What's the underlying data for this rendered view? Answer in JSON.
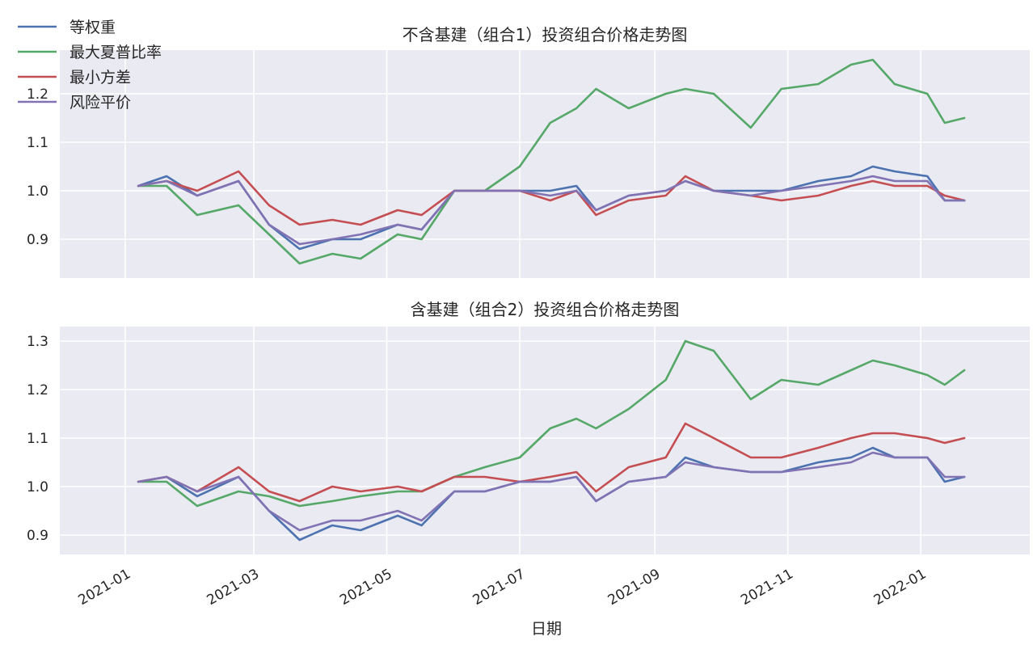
{
  "legend": [
    "等权重",
    "最大夏普比率",
    "最小方差",
    "风险平价"
  ],
  "chart_data": [
    {
      "type": "line",
      "title": "不含基建（组合1）投资组合价格走势图",
      "xlabel": "",
      "ylabel": "",
      "ylim": [
        0.82,
        1.29
      ],
      "yticks": [
        0.9,
        1.0,
        1.1,
        1.2
      ],
      "ytick_labels": [
        "0.9",
        "1.0",
        "1.1",
        "1.2"
      ],
      "xlim": [
        "2020-12-02",
        "2022-02-20"
      ],
      "x_dates": [
        "2021-01-07",
        "2021-01-20",
        "2021-02-03",
        "2021-02-22",
        "2021-03-08",
        "2021-03-22",
        "2021-04-06",
        "2021-04-19",
        "2021-05-06",
        "2021-05-17",
        "2021-06-01",
        "2021-06-15",
        "2021-07-01",
        "2021-07-15",
        "2021-07-27",
        "2021-08-05",
        "2021-08-20",
        "2021-09-06",
        "2021-09-15",
        "2021-09-28",
        "2021-10-15",
        "2021-10-29",
        "2021-11-15",
        "2021-11-30",
        "2021-12-10",
        "2021-12-20",
        "2022-01-04",
        "2022-01-12",
        "2022-01-21"
      ],
      "series": [
        {
          "name": "等权重",
          "color": "#4c72b0",
          "values": [
            1.01,
            1.03,
            0.99,
            1.02,
            0.93,
            0.88,
            0.9,
            0.9,
            0.93,
            0.92,
            1.0,
            1.0,
            1.0,
            1.0,
            1.01,
            0.96,
            0.99,
            1.0,
            1.02,
            1.0,
            1.0,
            1.0,
            1.02,
            1.03,
            1.05,
            1.04,
            1.03,
            0.98,
            0.98
          ]
        },
        {
          "name": "最大夏普比率",
          "color": "#55a868",
          "values": [
            1.01,
            1.01,
            0.95,
            0.97,
            0.91,
            0.85,
            0.87,
            0.86,
            0.91,
            0.9,
            1.0,
            1.0,
            1.05,
            1.14,
            1.17,
            1.21,
            1.17,
            1.2,
            1.21,
            1.2,
            1.13,
            1.21,
            1.22,
            1.26,
            1.27,
            1.22,
            1.2,
            1.14,
            1.15
          ]
        },
        {
          "name": "最小方差",
          "color": "#c44e52",
          "values": [
            1.01,
            1.02,
            1.0,
            1.04,
            0.97,
            0.93,
            0.94,
            0.93,
            0.96,
            0.95,
            1.0,
            1.0,
            1.0,
            0.98,
            1.0,
            0.95,
            0.98,
            0.99,
            1.03,
            1.0,
            0.99,
            0.98,
            0.99,
            1.01,
            1.02,
            1.01,
            1.01,
            0.99,
            0.98
          ]
        },
        {
          "name": "风险平价",
          "color": "#8172b3",
          "values": [
            1.01,
            1.02,
            0.99,
            1.02,
            0.93,
            0.89,
            0.9,
            0.91,
            0.93,
            0.92,
            1.0,
            1.0,
            1.0,
            0.99,
            1.0,
            0.96,
            0.99,
            1.0,
            1.02,
            1.0,
            0.99,
            1.0,
            1.01,
            1.02,
            1.03,
            1.02,
            1.02,
            0.98,
            0.98
          ]
        }
      ]
    },
    {
      "type": "line",
      "title": "含基建（组合2）投资组合价格走势图",
      "xlabel": "日期",
      "ylabel": "",
      "ylim": [
        0.86,
        1.33
      ],
      "yticks": [
        0.9,
        1.0,
        1.1,
        1.2,
        1.3
      ],
      "ytick_labels": [
        "0.9",
        "1.0",
        "1.1",
        "1.2",
        "1.3"
      ],
      "xlim": [
        "2020-12-02",
        "2022-02-20"
      ],
      "xticks": [
        "2021-01-01",
        "2021-03-01",
        "2021-05-01",
        "2021-07-01",
        "2021-09-01",
        "2021-11-01",
        "2022-01-01"
      ],
      "xtick_labels": [
        "2021-01",
        "2021-03",
        "2021-05",
        "2021-07",
        "2021-09",
        "2021-11",
        "2022-01"
      ],
      "x_dates": [
        "2021-01-07",
        "2021-01-20",
        "2021-02-03",
        "2021-02-22",
        "2021-03-08",
        "2021-03-22",
        "2021-04-06",
        "2021-04-19",
        "2021-05-06",
        "2021-05-17",
        "2021-06-01",
        "2021-06-15",
        "2021-07-01",
        "2021-07-15",
        "2021-07-27",
        "2021-08-05",
        "2021-08-20",
        "2021-09-06",
        "2021-09-15",
        "2021-09-28",
        "2021-10-15",
        "2021-10-29",
        "2021-11-15",
        "2021-11-30",
        "2021-12-10",
        "2021-12-20",
        "2022-01-04",
        "2022-01-12",
        "2022-01-21"
      ],
      "series": [
        {
          "name": "等权重",
          "color": "#4c72b0",
          "values": [
            1.01,
            1.02,
            0.98,
            1.02,
            0.95,
            0.89,
            0.92,
            0.91,
            0.94,
            0.92,
            0.99,
            0.99,
            1.01,
            1.01,
            1.02,
            0.97,
            1.01,
            1.02,
            1.06,
            1.04,
            1.03,
            1.03,
            1.05,
            1.06,
            1.08,
            1.06,
            1.06,
            1.01,
            1.02
          ]
        },
        {
          "name": "最大夏普比率",
          "color": "#55a868",
          "values": [
            1.01,
            1.01,
            0.96,
            0.99,
            0.98,
            0.96,
            0.97,
            0.98,
            0.99,
            0.99,
            1.02,
            1.04,
            1.06,
            1.12,
            1.14,
            1.12,
            1.16,
            1.22,
            1.3,
            1.28,
            1.18,
            1.22,
            1.21,
            1.24,
            1.26,
            1.25,
            1.23,
            1.21,
            1.24
          ]
        },
        {
          "name": "最小方差",
          "color": "#c44e52",
          "values": [
            1.01,
            1.02,
            0.99,
            1.04,
            0.99,
            0.97,
            1.0,
            0.99,
            1.0,
            0.99,
            1.02,
            1.02,
            1.01,
            1.02,
            1.03,
            0.99,
            1.04,
            1.06,
            1.13,
            1.1,
            1.06,
            1.06,
            1.08,
            1.1,
            1.11,
            1.11,
            1.1,
            1.09,
            1.1
          ]
        },
        {
          "name": "风险平价",
          "color": "#8172b3",
          "values": [
            1.01,
            1.02,
            0.99,
            1.02,
            0.95,
            0.91,
            0.93,
            0.93,
            0.95,
            0.93,
            0.99,
            0.99,
            1.01,
            1.01,
            1.02,
            0.97,
            1.01,
            1.02,
            1.05,
            1.04,
            1.03,
            1.03,
            1.04,
            1.05,
            1.07,
            1.06,
            1.06,
            1.02,
            1.02
          ]
        }
      ]
    }
  ]
}
